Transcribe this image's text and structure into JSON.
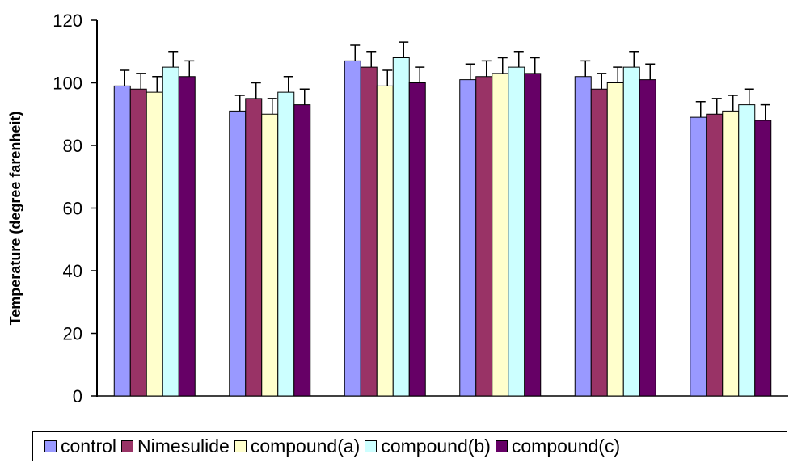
{
  "chart_data": {
    "type": "bar",
    "title": "",
    "xlabel": "",
    "ylabel": "Temperature (degree farenheit)",
    "ylim": [
      0,
      120
    ],
    "yticks": [
      0,
      20,
      40,
      60,
      80,
      100,
      120
    ],
    "categories": [
      "",
      "",
      "",
      "",
      "",
      ""
    ],
    "series": [
      {
        "name": "control",
        "color": "#9999ff",
        "values": [
          99,
          91,
          107,
          101,
          102,
          89
        ],
        "errors": [
          5,
          5,
          5,
          5,
          5,
          5
        ]
      },
      {
        "name": "Nimesulide",
        "color": "#993366",
        "values": [
          98,
          95,
          105,
          102,
          98,
          90
        ],
        "errors": [
          5,
          5,
          5,
          5,
          5,
          5
        ]
      },
      {
        "name": "compound(a)",
        "color": "#ffffcc",
        "values": [
          97,
          90,
          99,
          103,
          100,
          91
        ],
        "errors": [
          5,
          5,
          5,
          5,
          5,
          5
        ]
      },
      {
        "name": "compound(b)",
        "color": "#ccffff",
        "values": [
          105,
          97,
          108,
          105,
          105,
          93
        ],
        "errors": [
          5,
          5,
          5,
          5,
          5,
          5
        ]
      },
      {
        "name": "compound(c)",
        "color": "#660066",
        "values": [
          102,
          93,
          100,
          103,
          101,
          88
        ],
        "errors": [
          5,
          5,
          5,
          5,
          5,
          5
        ]
      }
    ],
    "grid": false,
    "legend_position": "bottom"
  }
}
